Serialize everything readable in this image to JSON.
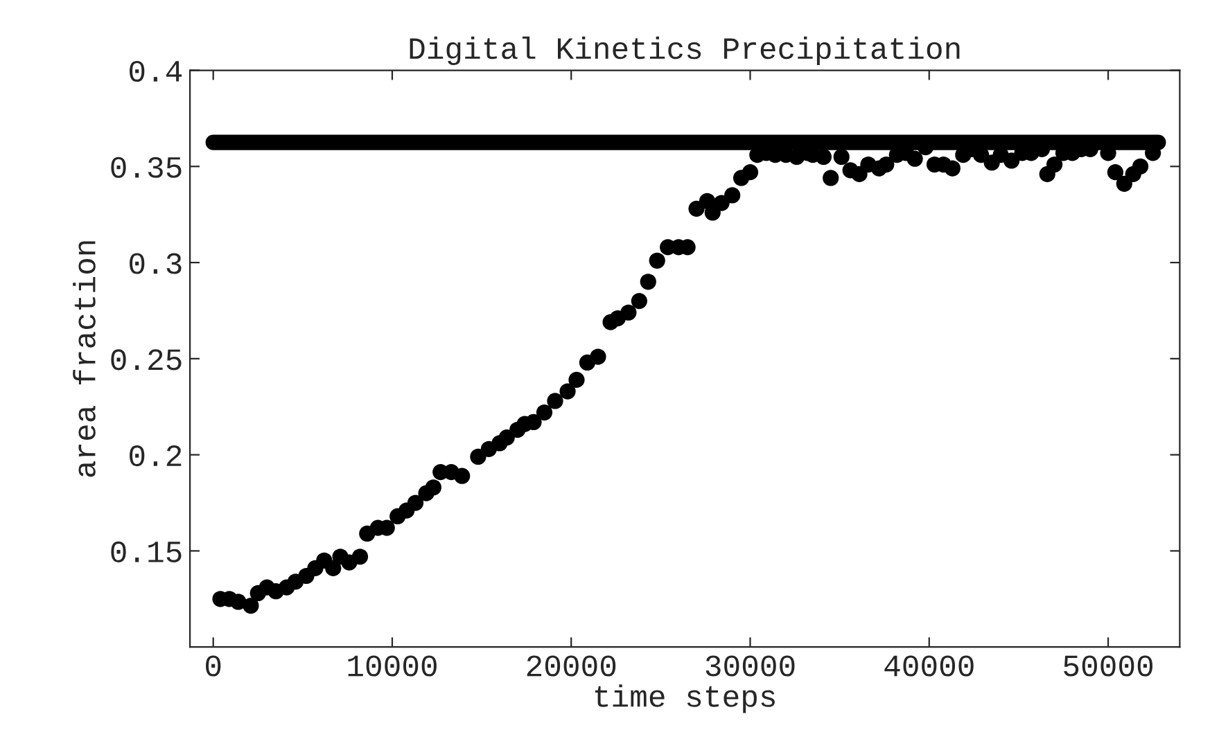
{
  "chart_data": {
    "type": "scatter",
    "title": "Digital Kinetics Precipitation",
    "xlabel": "time steps",
    "ylabel": "area fraction",
    "xlim": [
      -1300,
      54000
    ],
    "ylim": [
      0.1,
      0.4
    ],
    "xticks": [
      0,
      10000,
      20000,
      30000,
      40000,
      50000
    ],
    "yticks": [
      {
        "value": 0.15,
        "label": "0.15"
      },
      {
        "value": 0.2,
        "label": "0.2"
      },
      {
        "value": 0.25,
        "label": "0.25"
      },
      {
        "value": 0.3,
        "label": "0.3"
      },
      {
        "value": 0.35,
        "label": "0.35"
      },
      {
        "value": 0.4,
        "label": "0.4"
      }
    ],
    "grid": false,
    "legend": false,
    "series": [
      {
        "type": "line",
        "color": "#000000",
        "x": [
          0,
          52800
        ],
        "values": [
          0.3625,
          0.3625
        ]
      },
      {
        "color": "#000000",
        "marker": "circle",
        "x": [
          400,
          900,
          1400,
          2100,
          2500,
          3000,
          3500,
          4100,
          4600,
          5200,
          5700,
          6200,
          6700,
          7100,
          7600,
          8200,
          8600,
          9200,
          9700,
          10300,
          10800,
          11300,
          11900,
          12300,
          12700,
          13300,
          13900,
          14800,
          15400,
          16000,
          16400,
          17000,
          17400,
          17900,
          18500,
          19100,
          19800,
          20300,
          20900,
          21500,
          22200,
          22600,
          23200,
          23800,
          24300,
          24800,
          25400,
          26000,
          26500,
          27000,
          27600,
          27900,
          28400,
          29000,
          29500,
          30000,
          30400,
          30900,
          31400,
          32000,
          32600,
          33200,
          33500,
          34100,
          34500,
          35100,
          35600,
          36100,
          36600,
          37200,
          37600,
          38200,
          38700,
          39200,
          39800,
          40300,
          40800,
          41300,
          41900,
          42400,
          42900,
          43500,
          44000,
          44600,
          45200,
          45700,
          46300,
          46600,
          47000,
          47500,
          48000,
          48500,
          49000,
          50000,
          50400,
          50900,
          51400,
          51800,
          52500
        ],
        "values": [
          0.125,
          0.125,
          0.1235,
          0.1215,
          0.128,
          0.131,
          0.129,
          0.131,
          0.134,
          0.137,
          0.141,
          0.145,
          0.141,
          0.147,
          0.144,
          0.147,
          0.159,
          0.162,
          0.162,
          0.168,
          0.171,
          0.175,
          0.18,
          0.183,
          0.191,
          0.191,
          0.189,
          0.199,
          0.203,
          0.206,
          0.209,
          0.213,
          0.216,
          0.217,
          0.222,
          0.228,
          0.233,
          0.239,
          0.248,
          0.251,
          0.269,
          0.271,
          0.274,
          0.28,
          0.29,
          0.301,
          0.308,
          0.308,
          0.308,
          0.328,
          0.332,
          0.326,
          0.331,
          0.335,
          0.344,
          0.347,
          0.356,
          0.357,
          0.356,
          0.356,
          0.355,
          0.357,
          0.356,
          0.355,
          0.344,
          0.355,
          0.348,
          0.346,
          0.351,
          0.349,
          0.351,
          0.356,
          0.357,
          0.354,
          0.36,
          0.351,
          0.351,
          0.349,
          0.356,
          0.359,
          0.356,
          0.352,
          0.356,
          0.353,
          0.357,
          0.357,
          0.359,
          0.346,
          0.351,
          0.357,
          0.357,
          0.359,
          0.359,
          0.357,
          0.347,
          0.341,
          0.346,
          0.35,
          0.357
        ]
      }
    ]
  }
}
